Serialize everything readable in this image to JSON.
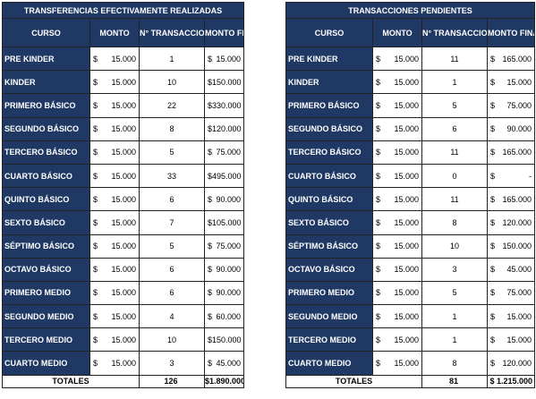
{
  "left": {
    "title": "TRANSFERENCIAS EFECTIVAMENTE REALIZADAS",
    "headers": [
      "CURSO",
      "MONTO",
      "N° TRANSACCIONES",
      "MONTO FINAL"
    ],
    "rows": [
      {
        "curso": "PRE KINDER",
        "monto": "15.000",
        "trans": "1",
        "final": "15.000"
      },
      {
        "curso": "KINDER",
        "monto": "15.000",
        "trans": "10",
        "final": "150.000"
      },
      {
        "curso": "PRIMERO BÁSICO",
        "monto": "15.000",
        "trans": "22",
        "final": "330.000"
      },
      {
        "curso": "SEGUNDO BÁSICO",
        "monto": "15.000",
        "trans": "8",
        "final": "120.000"
      },
      {
        "curso": "TERCERO BÁSICO",
        "monto": "15.000",
        "trans": "5",
        "final": "75.000"
      },
      {
        "curso": "CUARTO BÁSICO",
        "monto": "15.000",
        "trans": "33",
        "final": "495.000"
      },
      {
        "curso": "QUINTO BÁSICO",
        "monto": "15.000",
        "trans": "6",
        "final": "90.000"
      },
      {
        "curso": "SEXTO BÁSICO",
        "monto": "15.000",
        "trans": "7",
        "final": "105.000"
      },
      {
        "curso": "SÉPTIMO BÁSICO",
        "monto": "15.000",
        "trans": "5",
        "final": "75.000"
      },
      {
        "curso": "OCTAVO BÁSICO",
        "monto": "15.000",
        "trans": "6",
        "final": "90.000"
      },
      {
        "curso": "PRIMERO MEDIO",
        "monto": "15.000",
        "trans": "6",
        "final": "90.000"
      },
      {
        "curso": "SEGUNDO MEDIO",
        "monto": "15.000",
        "trans": "4",
        "final": "60.000"
      },
      {
        "curso": "TERCERO MEDIO",
        "monto": "15.000",
        "trans": "10",
        "final": "150.000"
      },
      {
        "curso": "CUARTO MEDIO",
        "monto": "15.000",
        "trans": "3",
        "final": "45.000"
      }
    ],
    "totals": {
      "label": "TOTALES",
      "trans": "126",
      "final": "$1.890.000"
    }
  },
  "right": {
    "title": "TRANSACCIONES PENDIENTES",
    "headers": [
      "CURSO",
      "MONTO",
      "N° TRANSACCIONES",
      "MONTO FINAL"
    ],
    "rows": [
      {
        "curso": "PRE KINDER",
        "monto": "15.000",
        "trans": "11",
        "final": "165.000"
      },
      {
        "curso": "KINDER",
        "monto": "15.000",
        "trans": "1",
        "final": "15.000"
      },
      {
        "curso": "PRIMERO BÁSICO",
        "monto": "15.000",
        "trans": "5",
        "final": "75.000"
      },
      {
        "curso": "SEGUNDO BÁSICO",
        "monto": "15.000",
        "trans": "6",
        "final": "90.000"
      },
      {
        "curso": "TERCERO BÁSICO",
        "monto": "15.000",
        "trans": "11",
        "final": "165.000"
      },
      {
        "curso": "CUARTO BÁSICO",
        "monto": "15.000",
        "trans": "0",
        "final": "-"
      },
      {
        "curso": "QUINTO BÁSICO",
        "monto": "15.000",
        "trans": "11",
        "final": "165.000"
      },
      {
        "curso": "SEXTO BÁSICO",
        "monto": "15.000",
        "trans": "8",
        "final": "120.000"
      },
      {
        "curso": "SÉPTIMO BÁSICO",
        "monto": "15.000",
        "trans": "10",
        "final": "150.000"
      },
      {
        "curso": "OCTAVO BÁSICO",
        "monto": "15.000",
        "trans": "3",
        "final": "45.000"
      },
      {
        "curso": "PRIMERO MEDIO",
        "monto": "15.000",
        "trans": "5",
        "final": "75.000"
      },
      {
        "curso": "SEGUNDO MEDIO",
        "monto": "15.000",
        "trans": "1",
        "final": "15.000"
      },
      {
        "curso": "TERCERO MEDIO",
        "monto": "15.000",
        "trans": "1",
        "final": "15.000"
      },
      {
        "curso": "CUARTO MEDIO",
        "monto": "15.000",
        "trans": "8",
        "final": "120.000"
      }
    ],
    "totals": {
      "label": "TOTALES",
      "trans": "81",
      "final": "$ 1.215.000"
    }
  },
  "currency_symbol": "$",
  "colors": {
    "header_bg": "#1f3864",
    "header_text": "#ffffff"
  }
}
